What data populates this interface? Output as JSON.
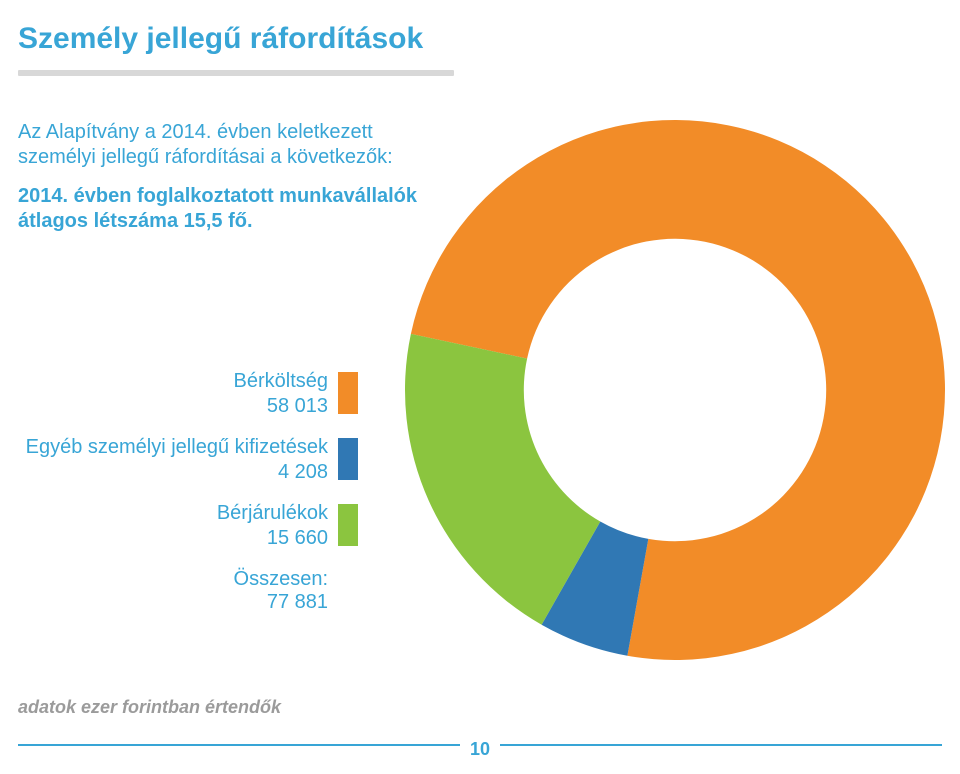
{
  "title": {
    "text": "Személy jellegű ráfordítások",
    "color": "#38a5d6"
  },
  "intro": {
    "line1": "Az Alapítvány a 2014. évben keletkezett személyi jellegű ráfordításai a következők:",
    "line2": "2014. évben foglalkoztatott munkavállalók átlagos létszáma 15,5 fő.",
    "text_color": "#38a5d6"
  },
  "chart": {
    "type": "donut",
    "background_color": "#ffffff",
    "inner_radius_ratio": 0.56,
    "outer_radius": 270,
    "segments": [
      {
        "label": "Bérköltség",
        "value": 58013,
        "color": "#f28c28"
      },
      {
        "label": "Egyéb személyi jellegű kifizetések",
        "value": 4208,
        "color": "#3078b4"
      },
      {
        "label": "Bérjárulékok",
        "value": 15660,
        "color": "#8bc53f"
      }
    ],
    "total_label": "Összesen:",
    "total_value": "77 881",
    "start_angle_deg": -168
  },
  "legend": {
    "items": [
      {
        "label": "Bérköltség",
        "value": "58 013",
        "color": "#f28c28"
      },
      {
        "label": "Egyéb személyi jellegű kifizetések",
        "value": "4 208",
        "color": "#3078b4"
      },
      {
        "label": "Bérjárulékok",
        "value": "15 660",
        "color": "#8bc53f"
      }
    ],
    "total_label": "Összesen:",
    "total_value": "77 881",
    "text_color": "#38a5d6"
  },
  "footnote": {
    "text": "adatok ezer forintban értendők",
    "color": "#9b9b9b"
  },
  "footer": {
    "line_color": "#38a5d6",
    "page_number": "10",
    "page_number_color": "#38a5d6"
  }
}
